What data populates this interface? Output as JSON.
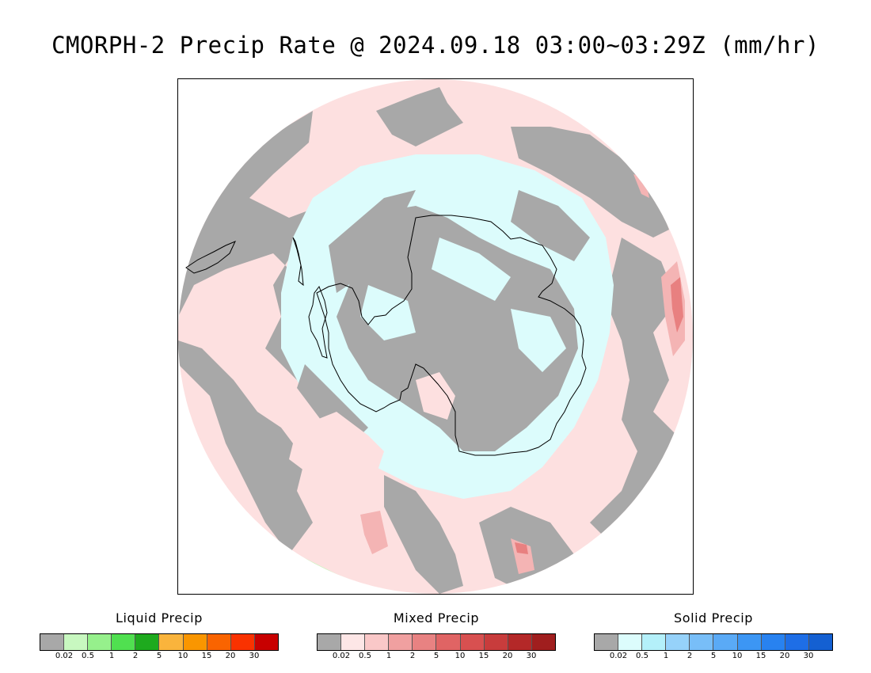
{
  "title": "CMORPH-2 Precip Rate @ 2024.09.18 03:00~03:29Z (mm/hr)",
  "colors": {
    "no_precip": "#a8a8a8",
    "liquid_trace": "#c8f8c0",
    "liquid_light": "#9af08e",
    "mixed_trace": "#fde0e0",
    "mixed_light": "#f4b4b4",
    "mixed_moderate": "#e88080",
    "solid_trace": "#dcfcfc",
    "coastline": "#000000"
  },
  "map": {
    "projection": "south-polar-stereographic",
    "features": [
      "coastline-antarctica",
      "coastline-south-america",
      "coastline-new-zealand"
    ]
  },
  "legends": [
    {
      "id": "liquid",
      "title": "Liquid Precip",
      "ticks": [
        "0.02",
        "0.5",
        "1",
        "2",
        "5",
        "10",
        "15",
        "20",
        "30"
      ],
      "colors": [
        "#a8a8a8",
        "#c8f8c0",
        "#96f08c",
        "#50e050",
        "#1eaa1e",
        "#fab43c",
        "#fa9600",
        "#fa6400",
        "#fa3200",
        "#c80000"
      ]
    },
    {
      "id": "mixed",
      "title": "Mixed Precip",
      "ticks": [
        "0.02",
        "0.5",
        "1",
        "2",
        "5",
        "10",
        "15",
        "20",
        "30"
      ],
      "colors": [
        "#a8a8a8",
        "#fde6e6",
        "#fac8c8",
        "#f0a0a0",
        "#e88282",
        "#e06464",
        "#d85050",
        "#c83c3c",
        "#b42828",
        "#a01e1e"
      ]
    },
    {
      "id": "solid",
      "title": "Solid Precip",
      "ticks": [
        "0.02",
        "0.5",
        "1",
        "2",
        "5",
        "10",
        "15",
        "20",
        "30"
      ],
      "colors": [
        "#a8a8a8",
        "#dcfcfc",
        "#b4f0fa",
        "#96d2fa",
        "#78bef8",
        "#5aaaf6",
        "#3c96f4",
        "#2882f0",
        "#1e6ee6",
        "#1460d2"
      ]
    }
  ]
}
